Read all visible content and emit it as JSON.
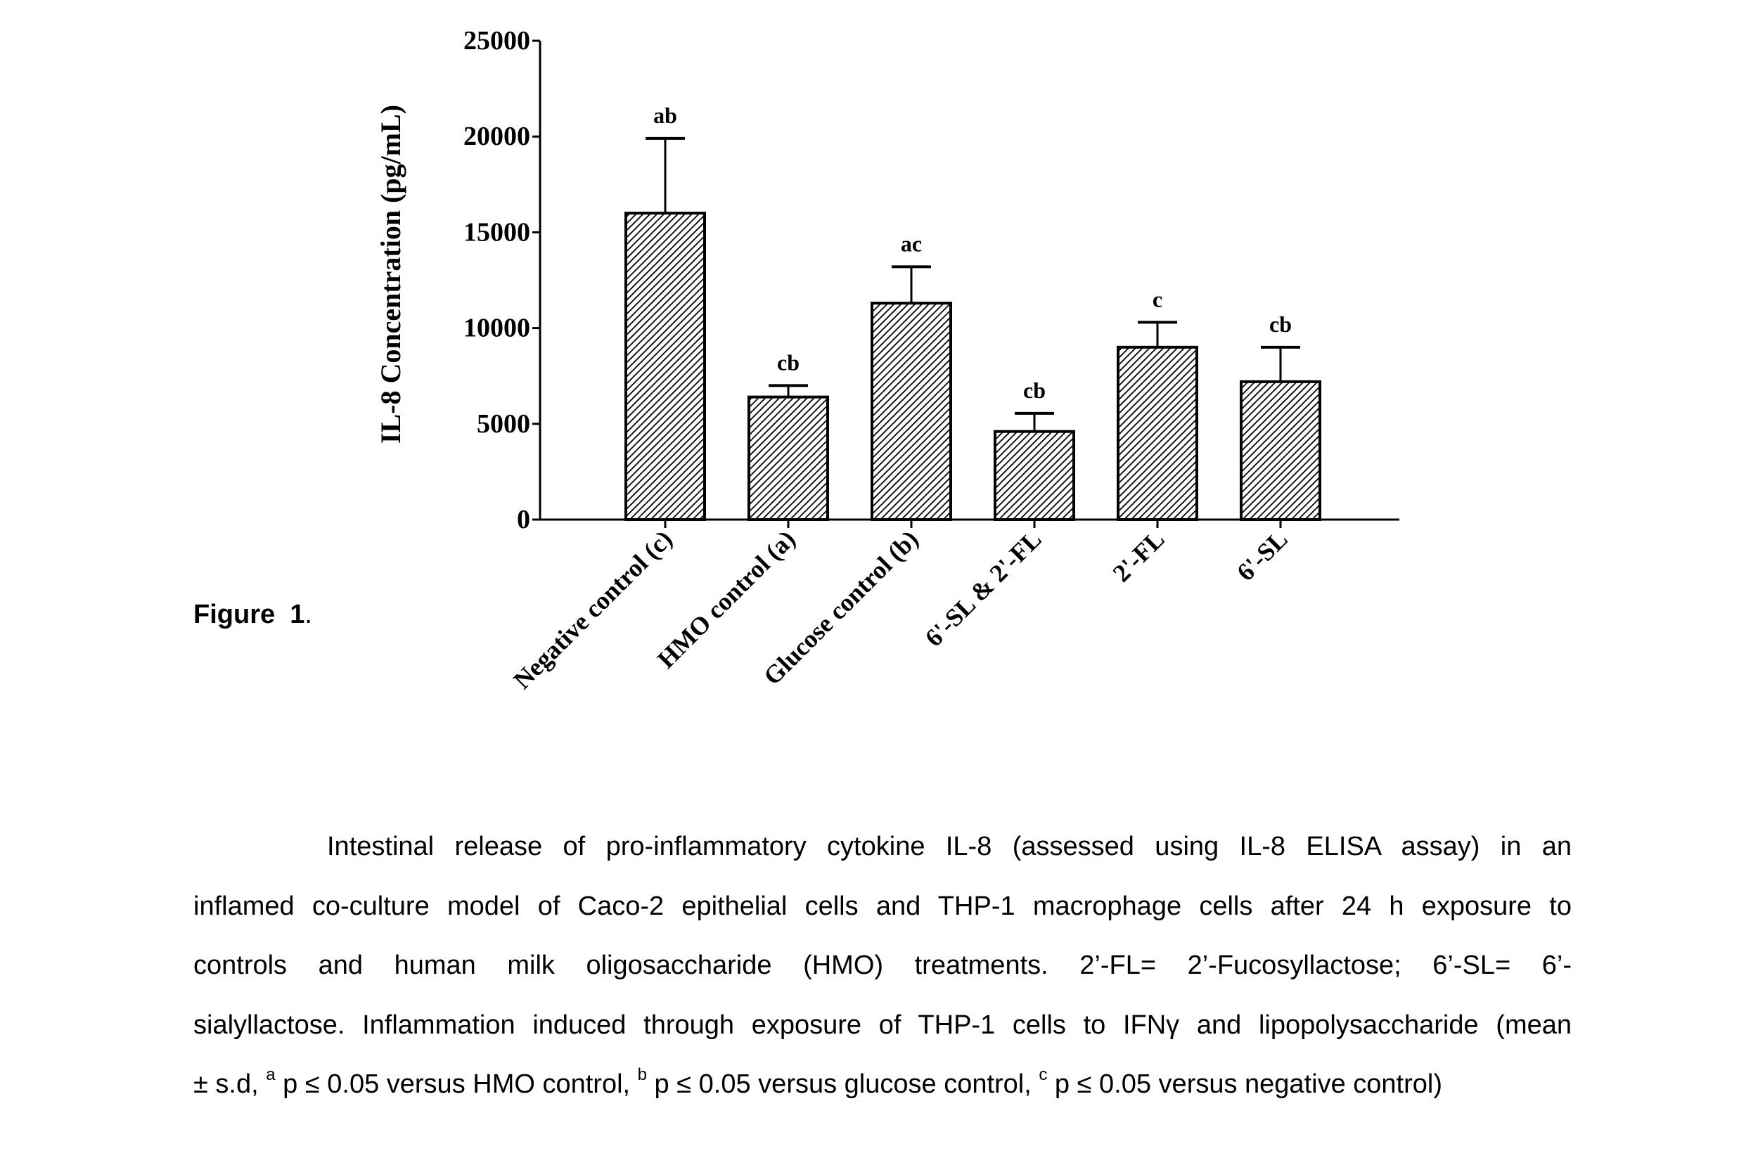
{
  "chart_data": {
    "type": "bar",
    "ylabel": "IL-8 Concentration (pg/mL)",
    "xlabel": "",
    "ylim": [
      0,
      25000
    ],
    "yticks": [
      0,
      5000,
      10000,
      15000,
      20000,
      25000
    ],
    "categories": [
      "Negative control (c)",
      "HMO control (a)",
      "Glucose control (b)",
      "6'-SL & 2'-FL",
      "2'-FL",
      "6'-SL"
    ],
    "values": [
      16000,
      6400,
      11300,
      4600,
      9000,
      7200
    ],
    "error": [
      3900,
      600,
      1900,
      950,
      1300,
      1800
    ],
    "annotations": [
      "ab",
      "cb",
      "ac",
      "cb",
      "c",
      "cb"
    ],
    "grid": false,
    "legend": "none",
    "bar_fill": "diagonal-hatch",
    "colors": {
      "bar_stroke": "#000000",
      "hatch": "#000000",
      "background": "#ffffff"
    }
  },
  "figure": {
    "label": "Figure",
    "number": "1",
    "punct": "."
  },
  "caption": {
    "line1": "Intestinal release of pro-inflammatory cytokine IL-8 (assessed using IL-8 ELISA assay) in an",
    "line2": "inflamed co-culture model of Caco-2 epithelial cells and THP-1 macrophage cells after 24 h exposure to",
    "line3": "controls and human milk oligosaccharide (HMO) treatments. 2’-FL= 2’-Fucosyllactose; 6’-SL= 6’-",
    "line4": "sialyllactose. Inflammation induced through exposure of THP-1 cells to IFNγ and lipopolysaccharide (mean",
    "line5_a": "± s.d, ",
    "sup_a": "a",
    "line5_b": " p ≤ 0.05 versus HMO control, ",
    "sup_b": "b",
    "line5_c": " p ≤ 0.05 versus glucose control, ",
    "sup_c": "c",
    "line5_d": " p ≤ 0.05 versus negative control)"
  }
}
